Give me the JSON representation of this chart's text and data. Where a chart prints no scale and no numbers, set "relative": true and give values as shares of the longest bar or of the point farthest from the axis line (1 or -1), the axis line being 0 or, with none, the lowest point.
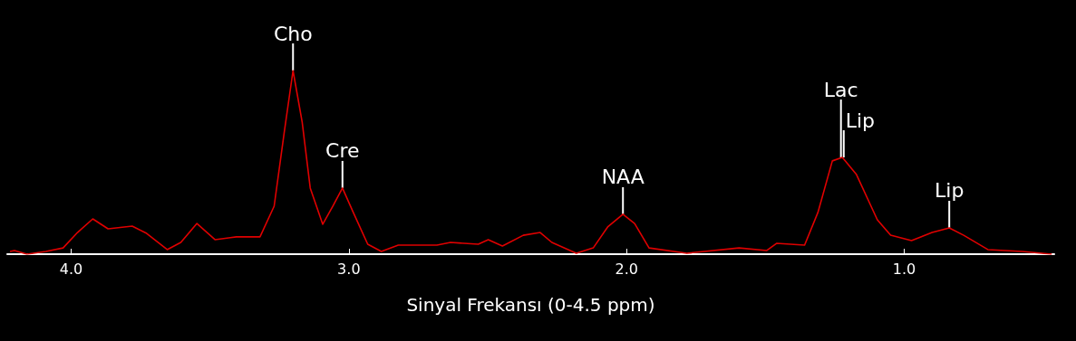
{
  "chart_data": {
    "type": "line",
    "relative": true,
    "xlabel": "Sinyal Frekansı (0-4.5 ppm)",
    "xlim": [
      4.23,
      0.46
    ],
    "xticks": [
      {
        "value": 4,
        "label": "4.0"
      },
      {
        "value": 3,
        "label": "3.0"
      },
      {
        "value": 2,
        "label": "2.0"
      },
      {
        "value": 1,
        "label": "1.0"
      }
    ],
    "x": [
      4.22,
      4.204,
      4.159,
      4.091,
      4.029,
      3.977,
      3.922,
      3.867,
      3.78,
      3.728,
      3.654,
      3.605,
      3.547,
      3.482,
      3.405,
      3.32,
      3.269,
      3.233,
      3.201,
      3.168,
      3.139,
      3.094,
      3.058,
      3.023,
      2.984,
      2.932,
      2.883,
      2.822,
      2.683,
      2.634,
      2.534,
      2.498,
      2.447,
      2.372,
      2.311,
      2.269,
      2.181,
      2.12,
      2.068,
      2.013,
      1.971,
      1.919,
      1.783,
      1.595,
      1.495,
      1.46,
      1.359,
      1.311,
      1.259,
      1.223,
      1.172,
      1.097,
      1.049,
      0.974,
      0.9,
      0.838,
      0.786,
      0.699,
      0.576,
      0.469
    ],
    "series": [
      {
        "color": "#e00000",
        "values": [
          0.015,
          0.02,
          0,
          0.015,
          0.034,
          0.118,
          0.192,
          0.138,
          0.153,
          0.113,
          0.025,
          0.064,
          0.167,
          0.079,
          0.094,
          0.094,
          0.261,
          0.66,
          1.0,
          0.719,
          0.36,
          0.163,
          0.261,
          0.36,
          0.227,
          0.054,
          0.015,
          0.049,
          0.049,
          0.064,
          0.054,
          0.079,
          0.044,
          0.103,
          0.118,
          0.064,
          0.005,
          0.034,
          0.148,
          0.217,
          0.167,
          0.034,
          0.005,
          0.034,
          0.02,
          0.059,
          0.049,
          0.227,
          0.508,
          0.527,
          0.433,
          0.187,
          0.103,
          0.074,
          0.118,
          0.143,
          0.103,
          0.025,
          0.015,
          0
        ]
      }
    ],
    "marker": "none",
    "line_style": "solid",
    "grid": false,
    "tick_labels": "x",
    "annotations": [
      {
        "text": "Cho",
        "x": 3.201,
        "y": 1.0
      },
      {
        "text": "Cre",
        "x": 3.023,
        "y": 0.36
      },
      {
        "text": "NAA",
        "x": 2.013,
        "y": 0.217
      },
      {
        "text": "Lac",
        "x": 1.228,
        "y": 0.527
      },
      {
        "text": "Lip",
        "x": 1.218,
        "y": 0.527
      },
      {
        "text": "Lip",
        "x": 0.838,
        "y": 0.143
      }
    ]
  }
}
